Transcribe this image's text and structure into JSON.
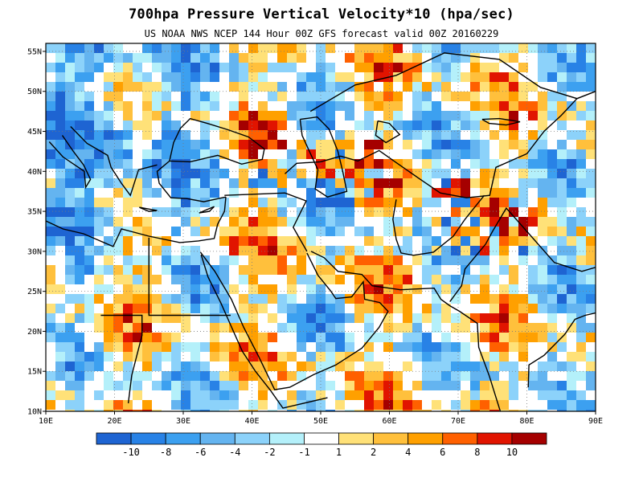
{
  "title": "700hpa Pressure Vertical Velocity*10 (hpa/sec)",
  "subtitle": "US NOAA NWS NCEP 144 Hour 00Z GFS forecast valid 00Z 20160229",
  "map": {
    "lon_range": [
      10,
      90
    ],
    "lat_range": [
      10,
      56
    ],
    "lon_ticks": [
      "10E",
      "20E",
      "30E",
      "40E",
      "50E",
      "60E",
      "70E",
      "80E",
      "90E"
    ],
    "lat_ticks": [
      "10N",
      "15N",
      "20N",
      "25N",
      "30N",
      "35N",
      "40N",
      "45N",
      "50N",
      "55N"
    ],
    "grid": "dotted",
    "field": "700hPa vertical velocity"
  },
  "colorbar": {
    "colors": [
      "#1e64d2",
      "#2882e6",
      "#3ca0f0",
      "#64b4f0",
      "#8cd2fa",
      "#b4f0fa",
      "#ffffff",
      "#ffe178",
      "#ffc03c",
      "#ffa000",
      "#ff6000",
      "#e11400",
      "#a50000"
    ],
    "labels": [
      "-10",
      "-8",
      "-6",
      "-4",
      "-2",
      "-1",
      "1",
      "2",
      "4",
      "6",
      "8",
      "10"
    ]
  }
}
